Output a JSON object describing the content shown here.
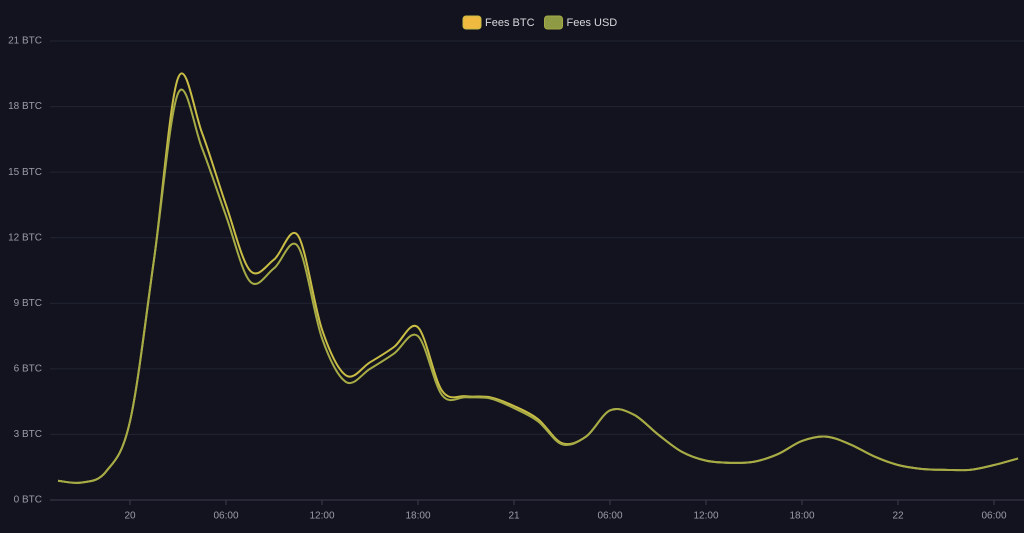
{
  "chart_data": {
    "type": "line",
    "categories": [
      null,
      null,
      null,
      "20",
      null,
      null,
      null,
      "06:00",
      null,
      null,
      null,
      "12:00",
      null,
      null,
      null,
      "18:00",
      null,
      null,
      null,
      "21",
      null,
      null,
      null,
      "06:00",
      null,
      null,
      null,
      "12:00",
      null,
      null,
      null,
      "18:00",
      null,
      null,
      null,
      "22",
      null,
      null,
      null,
      "06:00",
      null
    ],
    "series": [
      {
        "name": "Fees BTC",
        "color": "#c9bd45",
        "legend_color": "#f0b93f",
        "values": [
          0.88,
          0.8,
          1.3,
          3.6,
          11.0,
          19.3,
          16.8,
          13.5,
          10.5,
          11.0,
          12.1,
          7.8,
          5.7,
          6.3,
          7.0,
          7.9,
          5.0,
          4.75,
          4.7,
          4.3,
          3.7,
          2.6,
          2.9,
          4.1,
          3.9,
          3.0,
          2.2,
          1.8,
          1.7,
          1.75,
          2.1,
          2.7,
          2.9,
          2.55,
          2.0,
          1.6,
          1.42,
          1.38,
          1.38,
          1.6,
          1.9
        ]
      },
      {
        "name": "Fees USD",
        "color": "#a6ab45",
        "legend_color": "#8f9a45",
        "values": [
          0.88,
          0.8,
          1.3,
          3.6,
          11.0,
          18.6,
          16.1,
          13.0,
          10.0,
          10.6,
          11.6,
          7.4,
          5.4,
          6.0,
          6.7,
          7.5,
          4.8,
          4.7,
          4.65,
          4.2,
          3.6,
          2.55,
          2.9,
          4.1,
          3.9,
          3.0,
          2.2,
          1.8,
          1.7,
          1.75,
          2.1,
          2.7,
          2.9,
          2.55,
          2.0,
          1.6,
          1.42,
          1.38,
          1.38,
          1.6,
          1.9
        ]
      }
    ],
    "ylim": [
      0,
      21
    ],
    "yticks": [
      {
        "value": 0,
        "label": "0 BTC"
      },
      {
        "value": 3,
        "label": "3 BTC"
      },
      {
        "value": 6,
        "label": "6 BTC"
      },
      {
        "value": 9,
        "label": "9 BTC"
      },
      {
        "value": 12,
        "label": "12 BTC"
      },
      {
        "value": 15,
        "label": "15 BTC"
      },
      {
        "value": 18,
        "label": "18 BTC"
      },
      {
        "value": 21,
        "label": "21 BTC"
      }
    ],
    "grid": true,
    "legend": "top"
  }
}
